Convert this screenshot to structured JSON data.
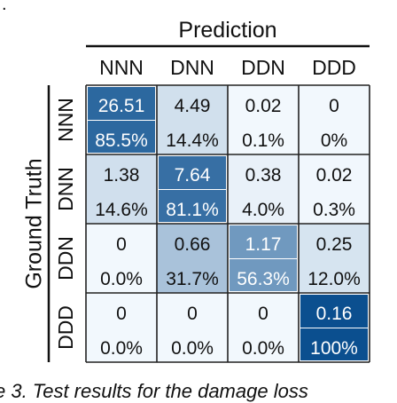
{
  "fragments": {
    "top": ".",
    "bottom": "e 3. Test results for the damage loss"
  },
  "chart_data": {
    "type": "heatmap",
    "title": "",
    "column_axis_label": "Prediction",
    "row_axis_label": "Ground Truth",
    "categories_x": [
      "NNN",
      "DNN",
      "DDN",
      "DDD"
    ],
    "categories_y": [
      "NNN",
      "DNN",
      "DDN",
      "DDD"
    ],
    "values": [
      [
        26.51,
        4.49,
        0.02,
        0
      ],
      [
        1.38,
        7.64,
        0.38,
        0.02
      ],
      [
        0,
        0.66,
        1.17,
        0.25
      ],
      [
        0,
        0,
        0,
        0.16
      ]
    ],
    "value_labels": [
      [
        "26.51",
        "4.49",
        "0.02",
        "0"
      ],
      [
        "1.38",
        "7.64",
        "0.38",
        "0.02"
      ],
      [
        "0",
        "0.66",
        "1.17",
        "0.25"
      ],
      [
        "0",
        "0",
        "0",
        "0.16"
      ]
    ],
    "percent_labels": [
      [
        "85.5%",
        "14.4%",
        "0.1%",
        "0%"
      ],
      [
        "14.6%",
        "81.1%",
        "4.0%",
        "0.3%"
      ],
      [
        "0.0%",
        "31.7%",
        "56.3%",
        "12.0%"
      ],
      [
        "0.0%",
        "0.0%",
        "0.0%",
        "100%"
      ]
    ],
    "row_percent": [
      [
        85.5,
        14.4,
        0.1,
        0
      ],
      [
        14.6,
        81.1,
        4.0,
        0.3
      ],
      [
        0.0,
        31.7,
        56.3,
        12.0
      ],
      [
        0.0,
        0.0,
        0.0,
        100
      ]
    ],
    "colors": {
      "strong": "#0b4f8f",
      "weak": "#f2f8fd",
      "dark_text_fill": "#111111",
      "light_text_fill": "#ffffff"
    }
  }
}
